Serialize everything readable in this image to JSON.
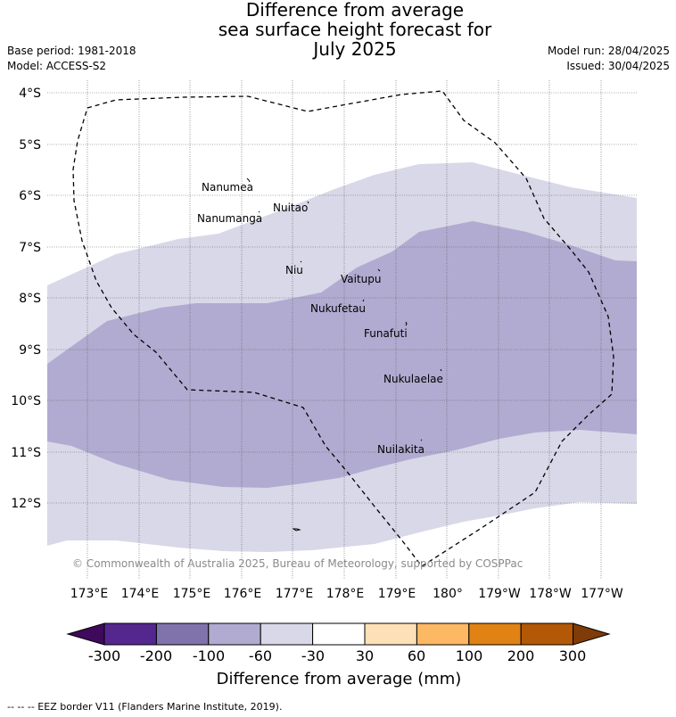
{
  "title_lines": [
    "Difference from average",
    "sea surface height forecast for",
    "July 2025"
  ],
  "base_period": "Base period: 1981-2018",
  "model": "Model: ACCESS-S2",
  "model_run": "Model run: 28/04/2025",
  "issued": "Issued: 30/04/2025",
  "copyright": "© Commonwealth of Australia 2025, Bureau of Meteorology, supported by COSPPac",
  "legend_note": "--  --  -- EEZ border V11 (Flanders Marine Institute, 2019).",
  "map": {
    "lat_ticks": [
      "4°S",
      "5°S",
      "6°S",
      "7°S",
      "8°S",
      "9°S",
      "10°S",
      "11°S",
      "12°S"
    ],
    "lon_ticks": [
      "173°E",
      "174°E",
      "175°E",
      "176°E",
      "177°E",
      "178°E",
      "179°E",
      "180°",
      "179°W",
      "178°W",
      "177°W"
    ],
    "places": [
      {
        "name": "Nanumea"
      },
      {
        "name": "Nuitao"
      },
      {
        "name": "Nanumanga"
      },
      {
        "name": "Niu"
      },
      {
        "name": "Vaitupu"
      },
      {
        "name": "Nukufetau"
      },
      {
        "name": "Funafuti"
      },
      {
        "name": "Nukulaelae"
      },
      {
        "name": "Nuilakita"
      }
    ],
    "colors": {
      "light_band": "#d8d8e8",
      "mid_band": "#b1abd1",
      "border": "#000000",
      "grid": "#555555"
    }
  },
  "colorbar": {
    "title": "Difference from average (mm)",
    "labels": [
      "-300",
      "-200",
      "-100",
      "-60",
      "-30",
      "30",
      "60",
      "100",
      "200",
      "300"
    ],
    "colors": [
      "#3f0a5b",
      "#54278f",
      "#8073ac",
      "#b1abd1",
      "#d8d8e8",
      "#ffffff",
      "#fee0b6",
      "#fdb863",
      "#e08214",
      "#b35806",
      "#7f3b08"
    ]
  }
}
